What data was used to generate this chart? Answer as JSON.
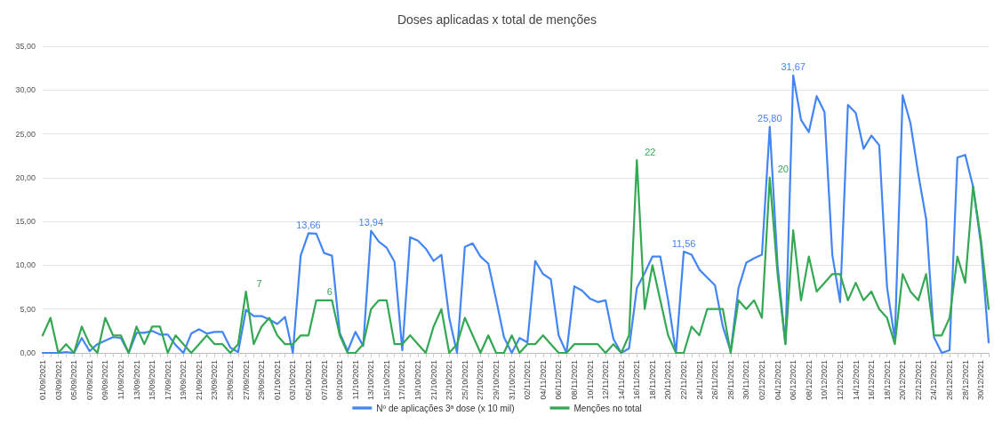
{
  "chart_data": {
    "type": "line",
    "title": "Doses aplicadas x total de menções",
    "categories": [
      "01/09/2021",
      null,
      "03/09/2021",
      null,
      "05/09/2021",
      null,
      "07/09/2021",
      null,
      "09/09/2021",
      null,
      "11/09/2021",
      null,
      "13/09/2021",
      null,
      "15/09/2021",
      null,
      "17/09/2021",
      null,
      "19/09/2021",
      null,
      "21/09/2021",
      null,
      "23/09/2021",
      null,
      "25/09/2021",
      null,
      "27/09/2021",
      null,
      "29/09/2021",
      null,
      "01/10/2021",
      null,
      "03/10/2021",
      null,
      "05/10/2021",
      null,
      "07/10/2021",
      null,
      "09/10/2021",
      null,
      "11/10/2021",
      null,
      "13/10/2021",
      null,
      "15/10/2021",
      null,
      "17/10/2021",
      null,
      "19/10/2021",
      null,
      "21/10/2021",
      null,
      "23/10/2021",
      null,
      "25/10/2021",
      null,
      "27/10/2021",
      null,
      "29/10/2021",
      null,
      "31/10/2021",
      null,
      "02/11/2021",
      null,
      "04/11/2021",
      null,
      "06/11/2021",
      null,
      "08/11/2021",
      null,
      "10/11/2021",
      null,
      "12/11/2021",
      null,
      "14/11/2021",
      null,
      "16/11/2021",
      null,
      "18/11/2021",
      null,
      "20/11/2021",
      null,
      "22/11/2021",
      null,
      "24/11/2021",
      null,
      "26/11/2021",
      null,
      "28/11/2021",
      null,
      "30/11/2021",
      null,
      "02/12/2021",
      null,
      "04/12/2021",
      null,
      "06/12/2021",
      null,
      "08/12/2021",
      null,
      "10/12/2021",
      null,
      "12/12/2021",
      null,
      "14/12/2021",
      null,
      "16/12/2021",
      null,
      "18/12/2021",
      null,
      "20/12/2021",
      null,
      "22/12/2021",
      null,
      "24/12/2021",
      null,
      "26/12/2021",
      null,
      "28/12/2021",
      null,
      "30/12/2021",
      null
    ],
    "series": [
      {
        "name": "Nº de aplicações 3ª dose (x 10 mil)",
        "color": "#4285f4",
        "values": [
          0,
          0,
          0,
          0.1,
          0,
          1.7,
          0.2,
          1.0,
          1.4,
          1.8,
          1.7,
          0,
          2.3,
          2.3,
          2.5,
          2.1,
          2.1,
          0.9,
          0,
          2.2,
          2.7,
          2.2,
          2.4,
          2.4,
          0.6,
          0.1,
          4.9,
          4.2,
          4.2,
          3.8,
          3.3,
          4.1,
          0,
          11.1,
          13.66,
          13.6,
          11.4,
          11.1,
          2.3,
          0.2,
          2.4,
          0.8,
          13.94,
          12.7,
          12.0,
          10.4,
          0.3,
          13.2,
          12.8,
          11.9,
          10.5,
          11.2,
          4.0,
          0,
          12.1,
          12.5,
          11.0,
          10.2,
          6.1,
          1.8,
          0,
          1.7,
          1.2,
          10.5,
          9.0,
          8.4,
          2.0,
          0,
          7.6,
          7.1,
          6.2,
          5.8,
          6.0,
          1.6,
          0,
          0.5,
          7.4,
          9.1,
          11.0,
          11.0,
          6.0,
          0,
          11.56,
          11.2,
          9.5,
          8.6,
          7.7,
          3.0,
          0.2,
          7.4,
          10.3,
          10.8,
          11.2,
          25.8,
          10.0,
          1.0,
          31.67,
          26.6,
          25.2,
          29.3,
          27.5,
          11.2,
          5.8,
          28.3,
          27.4,
          23.3,
          24.8,
          23.7,
          7.5,
          1.5,
          29.4,
          26.2,
          20.4,
          15.3,
          1.8,
          0,
          0.3,
          22.3,
          22.6,
          19.0,
          12.5,
          1.2
        ],
        "value_labels": [
          null,
          null,
          null,
          null,
          null,
          null,
          null,
          null,
          null,
          null,
          null,
          null,
          null,
          null,
          null,
          null,
          null,
          null,
          null,
          null,
          null,
          null,
          null,
          null,
          null,
          null,
          null,
          null,
          null,
          null,
          null,
          null,
          null,
          null,
          "13,66",
          null,
          null,
          null,
          null,
          null,
          null,
          null,
          "13,94",
          null,
          null,
          null,
          null,
          null,
          null,
          null,
          null,
          null,
          null,
          null,
          null,
          null,
          null,
          null,
          null,
          null,
          null,
          null,
          null,
          null,
          null,
          null,
          null,
          null,
          null,
          null,
          null,
          null,
          null,
          null,
          null,
          null,
          null,
          null,
          null,
          null,
          null,
          null,
          "11,56",
          null,
          null,
          null,
          null,
          null,
          null,
          null,
          null,
          null,
          null,
          "25,80",
          null,
          null,
          "31,67",
          null,
          null,
          null,
          null,
          null,
          null,
          null,
          null,
          null,
          null,
          null,
          null,
          null,
          null,
          null,
          null,
          null,
          null,
          null,
          null,
          null,
          null,
          null,
          null,
          null
        ]
      },
      {
        "name": "Menções no total",
        "color": "#34a853",
        "values": [
          2,
          4,
          0,
          1,
          0,
          3,
          1,
          0,
          4,
          2,
          2,
          0,
          3,
          1,
          3,
          3,
          0,
          2,
          1,
          0,
          1,
          2,
          1,
          1,
          0,
          1,
          7,
          1,
          3,
          4,
          2,
          1,
          1,
          2,
          2,
          6,
          6,
          6,
          2,
          0,
          0,
          1,
          5,
          6,
          6,
          1,
          1,
          2,
          1,
          0,
          3,
          5,
          0,
          1,
          4,
          2,
          0,
          2,
          0,
          0,
          2,
          0,
          1,
          1,
          2,
          1,
          0,
          0,
          1,
          1,
          1,
          1,
          0,
          1,
          0,
          2,
          22,
          5,
          10,
          6,
          2,
          0,
          0,
          3,
          2,
          5,
          5,
          5,
          0,
          6,
          5,
          6,
          4,
          20,
          9,
          1,
          14,
          6,
          11,
          7,
          8,
          9,
          9,
          6,
          8,
          6,
          7,
          5,
          4,
          1,
          9,
          7,
          6,
          9,
          2,
          2,
          4,
          11,
          8,
          19,
          13,
          5
        ],
        "value_labels": [
          null,
          null,
          null,
          null,
          null,
          null,
          null,
          null,
          null,
          null,
          null,
          null,
          null,
          null,
          null,
          null,
          null,
          null,
          null,
          null,
          null,
          null,
          null,
          null,
          null,
          null,
          "7",
          null,
          null,
          null,
          null,
          null,
          null,
          null,
          null,
          "6",
          null,
          null,
          null,
          null,
          null,
          null,
          null,
          null,
          null,
          null,
          null,
          null,
          null,
          null,
          null,
          null,
          null,
          null,
          null,
          null,
          null,
          null,
          null,
          null,
          null,
          null,
          null,
          null,
          null,
          null,
          null,
          null,
          null,
          null,
          null,
          null,
          null,
          null,
          null,
          null,
          "22",
          null,
          null,
          null,
          null,
          null,
          null,
          null,
          null,
          null,
          null,
          null,
          null,
          null,
          null,
          null,
          null,
          "20",
          null,
          null,
          null,
          null,
          null,
          null,
          null,
          null,
          null,
          null,
          null,
          null,
          null,
          null,
          null,
          null,
          null,
          null,
          null,
          null,
          null,
          null,
          null,
          null,
          null,
          null,
          null,
          null
        ]
      }
    ],
    "ylim": [
      0,
      35
    ],
    "yticks": [
      {
        "value": 0,
        "label": "0,00"
      },
      {
        "value": 5,
        "label": "5,00"
      },
      {
        "value": 10,
        "label": "10,00"
      },
      {
        "value": 15,
        "label": "15,00"
      },
      {
        "value": 20,
        "label": "20,00"
      },
      {
        "value": 25,
        "label": "25,00"
      },
      {
        "value": 30,
        "label": "30,00"
      },
      {
        "value": 35,
        "label": "35,00"
      }
    ],
    "grid": "y",
    "legend": "bottom",
    "marker": "none",
    "line_style": "solid"
  }
}
